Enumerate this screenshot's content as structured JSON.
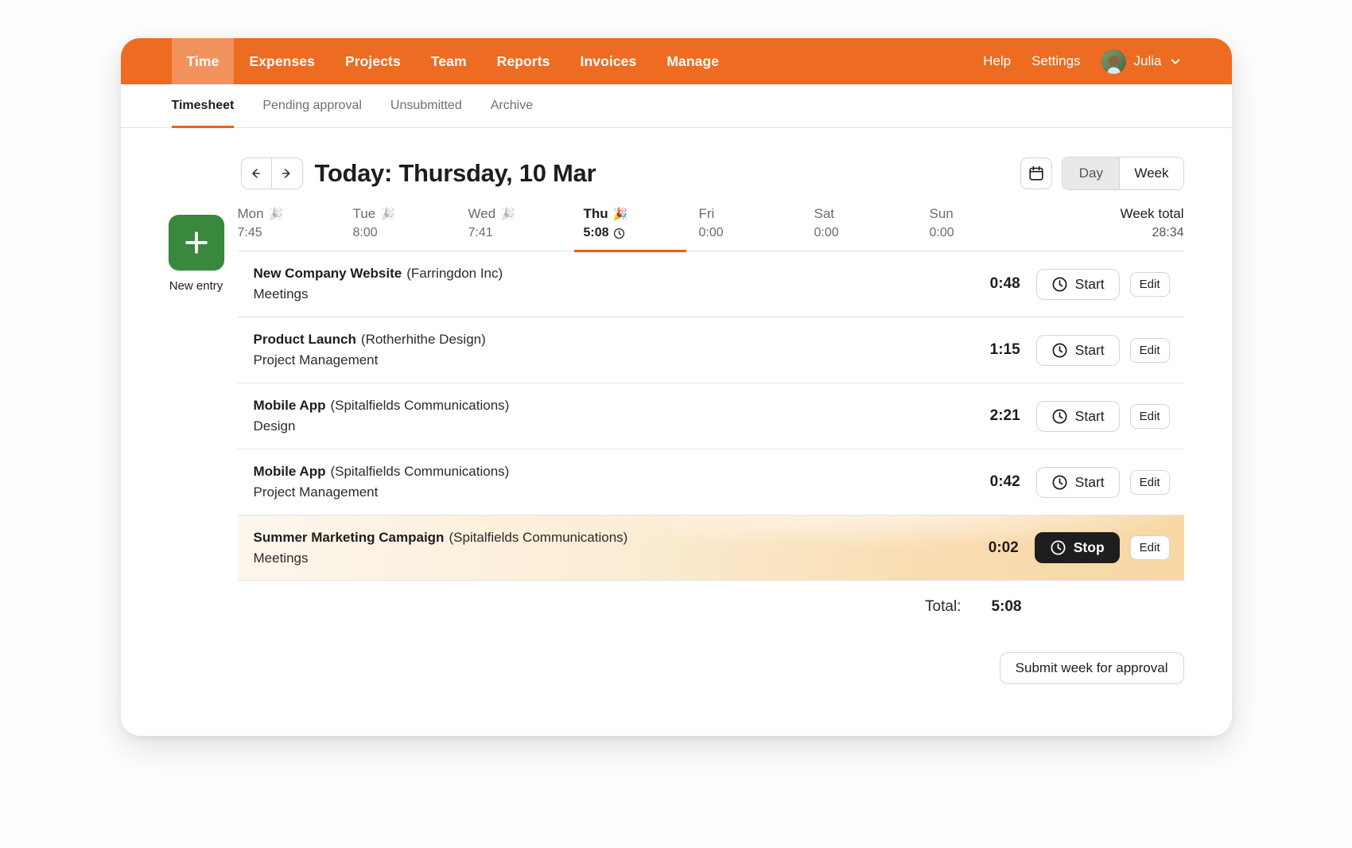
{
  "header": {
    "nav_items": [
      {
        "label": "Time",
        "active": true
      },
      {
        "label": "Expenses",
        "active": false
      },
      {
        "label": "Projects",
        "active": false
      },
      {
        "label": "Team",
        "active": false
      },
      {
        "label": "Reports",
        "active": false
      },
      {
        "label": "Invoices",
        "active": false
      },
      {
        "label": "Manage",
        "active": false
      }
    ],
    "help_label": "Help",
    "settings_label": "Settings",
    "user_name": "Julia"
  },
  "tabs": [
    {
      "label": "Timesheet",
      "active": true
    },
    {
      "label": "Pending approval",
      "active": false
    },
    {
      "label": "Unsubmitted",
      "active": false
    },
    {
      "label": "Archive",
      "active": false
    }
  ],
  "toolbar": {
    "title_prefix": "Today:",
    "title_date": " Thursday, 10 Mar",
    "view_day": "Day",
    "view_week": "Week",
    "selected_view": "Day"
  },
  "new_entry_label": "New entry",
  "week": {
    "days": [
      {
        "label": "Mon",
        "hours": "7:45",
        "emoji": "🎉",
        "emoji_muted": true,
        "active": false
      },
      {
        "label": "Tue",
        "hours": "8:00",
        "emoji": "🎉",
        "emoji_muted": true,
        "active": false
      },
      {
        "label": "Wed",
        "hours": "7:41",
        "emoji": "🎉",
        "emoji_muted": true,
        "active": false
      },
      {
        "label": "Thu",
        "hours": "5:08",
        "emoji": "🎉",
        "emoji_muted": false,
        "active": true,
        "clock_icon": true
      },
      {
        "label": "Fri",
        "hours": "0:00",
        "emoji": "",
        "emoji_muted": false,
        "active": false
      },
      {
        "label": "Sat",
        "hours": "0:00",
        "emoji": "",
        "emoji_muted": false,
        "active": false
      },
      {
        "label": "Sun",
        "hours": "0:00",
        "emoji": "",
        "emoji_muted": false,
        "active": false
      }
    ],
    "total_label": "Week total",
    "total_value": "28:34"
  },
  "entries": [
    {
      "project": "New Company Website",
      "client": "(Farringdon Inc)",
      "task": "Meetings",
      "time": "0:48",
      "running": false
    },
    {
      "project": "Product Launch",
      "client": "(Rotherhithe Design)",
      "task": "Project Management",
      "time": "1:15",
      "running": false
    },
    {
      "project": "Mobile App",
      "client": "(Spitalfields Communications)",
      "task": "Design",
      "time": "2:21",
      "running": false
    },
    {
      "project": "Mobile App",
      "client": "(Spitalfields Communications)",
      "task": "Project Management",
      "time": "0:42",
      "running": false
    },
    {
      "project": "Summer Marketing Campaign",
      "client": "(Spitalfields Communications)",
      "task": "Meetings",
      "time": "0:02",
      "running": true
    }
  ],
  "actions": {
    "start": "Start",
    "stop": "Stop",
    "edit": "Edit"
  },
  "summary": {
    "total_label": "Total:",
    "total_value": "5:08"
  },
  "submit_label": "Submit week for approval",
  "colors": {
    "brand_orange": "#ed6c22",
    "tab_underline_orange": "#e8611a",
    "new_entry_green": "#3a873e",
    "running_row_tint": "#f8d7a4",
    "stop_button_bg": "#1e1e1e"
  }
}
